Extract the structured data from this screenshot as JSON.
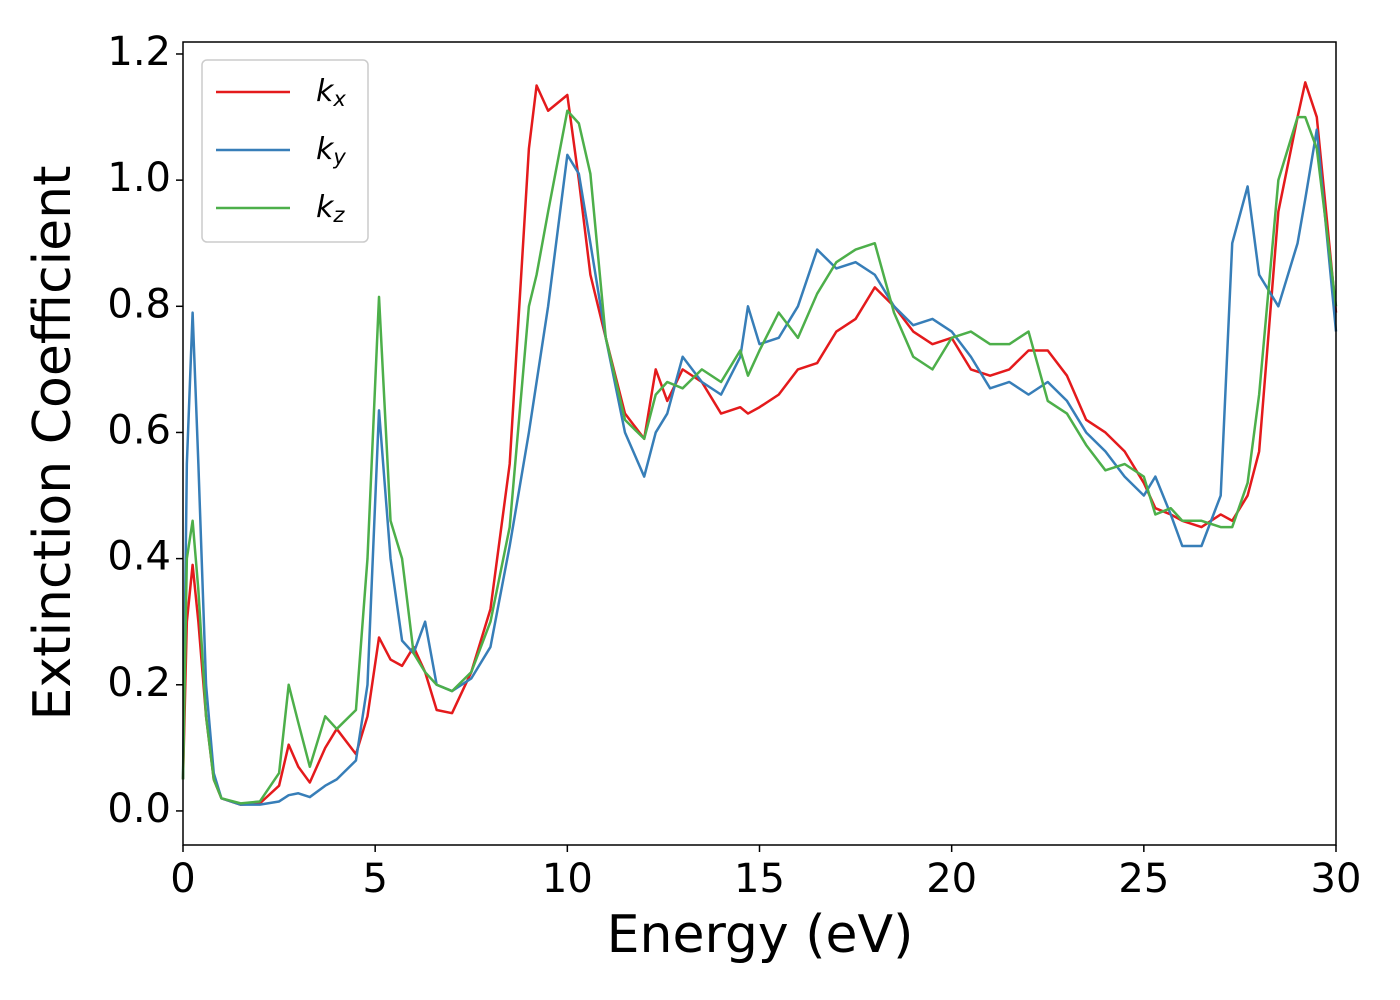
{
  "chart_data": {
    "type": "line",
    "xlabel": "Energy (eV)",
    "ylabel": "Extinction Coefficient",
    "x": [
      0,
      0.1,
      0.25,
      0.4,
      0.6,
      0.8,
      1,
      1.5,
      2,
      2.5,
      2.75,
      3,
      3.3,
      3.7,
      4,
      4.5,
      4.8,
      5.1,
      5.4,
      5.7,
      6,
      6.3,
      6.6,
      7,
      7.5,
      8,
      8.5,
      9,
      9.2,
      9.5,
      10,
      10.3,
      10.6,
      11,
      11.5,
      12,
      12.3,
      12.6,
      13,
      13.5,
      14,
      14.5,
      14.7,
      15,
      15.5,
      16,
      16.5,
      17,
      17.5,
      18,
      18.5,
      19,
      19.5,
      20,
      20.5,
      21,
      21.5,
      22,
      22.5,
      23,
      23.5,
      24,
      24.5,
      25,
      25.3,
      25.7,
      26,
      26.5,
      27,
      27.3,
      27.7,
      28,
      28.5,
      29,
      29.2,
      29.5,
      30
    ],
    "series": [
      {
        "name": "kx",
        "color": "#e41a1c",
        "values": [
          0.05,
          0.3,
          0.39,
          0.3,
          0.15,
          0.05,
          0.02,
          0.01,
          0.012,
          0.04,
          0.105,
          0.07,
          0.045,
          0.1,
          0.13,
          0.09,
          0.15,
          0.275,
          0.24,
          0.23,
          0.26,
          0.22,
          0.16,
          0.155,
          0.22,
          0.32,
          0.55,
          1.05,
          1.15,
          1.11,
          1.135,
          1.0,
          0.85,
          0.75,
          0.63,
          0.59,
          0.7,
          0.65,
          0.7,
          0.68,
          0.63,
          0.64,
          0.63,
          0.64,
          0.66,
          0.7,
          0.71,
          0.76,
          0.78,
          0.83,
          0.8,
          0.76,
          0.74,
          0.75,
          0.7,
          0.69,
          0.7,
          0.73,
          0.73,
          0.69,
          0.62,
          0.6,
          0.57,
          0.52,
          0.48,
          0.47,
          0.46,
          0.45,
          0.47,
          0.46,
          0.5,
          0.57,
          0.95,
          1.1,
          1.155,
          1.1,
          0.79
        ]
      },
      {
        "name": "ky",
        "color": "#377eb8",
        "values": [
          0.05,
          0.55,
          0.79,
          0.55,
          0.2,
          0.06,
          0.02,
          0.01,
          0.01,
          0.015,
          0.025,
          0.028,
          0.022,
          0.04,
          0.05,
          0.08,
          0.2,
          0.635,
          0.4,
          0.27,
          0.25,
          0.3,
          0.2,
          0.19,
          0.21,
          0.26,
          0.42,
          0.6,
          0.68,
          0.8,
          1.04,
          1.01,
          0.9,
          0.75,
          0.6,
          0.53,
          0.6,
          0.63,
          0.72,
          0.68,
          0.66,
          0.72,
          0.8,
          0.74,
          0.75,
          0.8,
          0.89,
          0.86,
          0.87,
          0.85,
          0.8,
          0.77,
          0.78,
          0.76,
          0.72,
          0.67,
          0.68,
          0.66,
          0.68,
          0.65,
          0.6,
          0.57,
          0.53,
          0.5,
          0.53,
          0.47,
          0.42,
          0.42,
          0.5,
          0.9,
          0.99,
          0.85,
          0.8,
          0.9,
          0.97,
          1.08,
          0.76
        ]
      },
      {
        "name": "kz",
        "color": "#4daf4a",
        "values": [
          0.05,
          0.4,
          0.46,
          0.35,
          0.15,
          0.05,
          0.02,
          0.012,
          0.015,
          0.06,
          0.2,
          0.14,
          0.07,
          0.15,
          0.13,
          0.16,
          0.4,
          0.815,
          0.46,
          0.4,
          0.25,
          0.22,
          0.2,
          0.19,
          0.22,
          0.3,
          0.45,
          0.8,
          0.85,
          0.95,
          1.11,
          1.09,
          1.01,
          0.75,
          0.62,
          0.59,
          0.66,
          0.68,
          0.67,
          0.7,
          0.68,
          0.73,
          0.69,
          0.73,
          0.79,
          0.75,
          0.82,
          0.87,
          0.89,
          0.9,
          0.79,
          0.72,
          0.7,
          0.75,
          0.76,
          0.74,
          0.74,
          0.76,
          0.65,
          0.63,
          0.58,
          0.54,
          0.55,
          0.53,
          0.47,
          0.48,
          0.46,
          0.46,
          0.45,
          0.45,
          0.52,
          0.66,
          1.0,
          1.1,
          1.1,
          1.05,
          0.8
        ]
      }
    ],
    "xlim": [
      0,
      30
    ],
    "xticks": [
      0,
      5,
      10,
      15,
      20,
      25,
      30
    ],
    "ylim": [
      -0.054,
      1.219
    ],
    "yticks": [
      {
        "value": 0,
        "label": "0.0"
      },
      0.2,
      0.4,
      0.6,
      0.8,
      {
        "value": 1,
        "label": "1.0"
      },
      1.2
    ],
    "legend": "upper left"
  }
}
